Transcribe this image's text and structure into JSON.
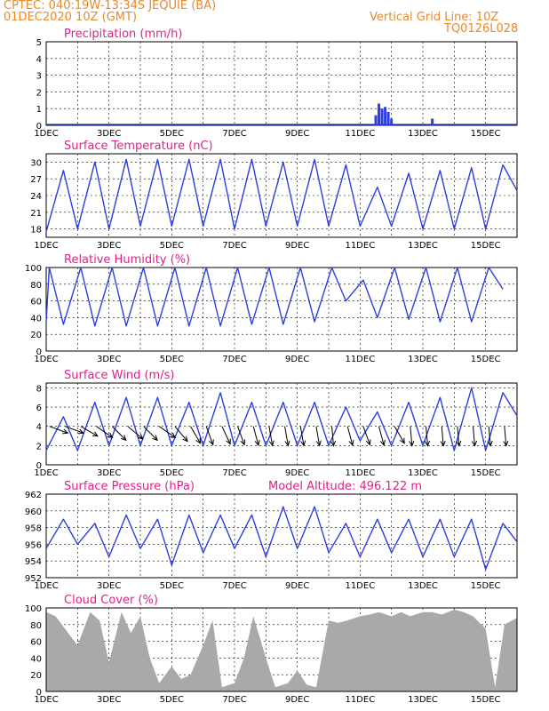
{
  "header": {
    "line1": "CPTEC:   040:19W-13:34S  JEQUIE (BA)",
    "line2": "01DEC2020 10Z (GMT)",
    "grid_note": "Vertical Grid Line: 10Z",
    "code": "TQ0126L028"
  },
  "x_labels": [
    "1DEC",
    "3DEC",
    "5DEC",
    "7DEC",
    "9DEC",
    "11DEC",
    "13DEC",
    "15DEC"
  ],
  "colors": {
    "line": "#2b3fe0",
    "title": "#e0218a",
    "header": "#e8892a",
    "cloud": "#a9a9a9",
    "wind_arrow": "#000000"
  },
  "chart_data": [
    {
      "id": "precip",
      "type": "bar",
      "title": "Precipitation (mm/h)",
      "ylim": [
        0,
        5
      ],
      "yticks": [
        0,
        1,
        2,
        3,
        4,
        5
      ],
      "x": [
        10.5,
        10.6,
        10.7,
        10.8,
        10.9,
        11.0,
        12.3
      ],
      "values": [
        0.6,
        1.3,
        1.0,
        1.1,
        0.8,
        0.4,
        0.4
      ]
    },
    {
      "id": "temp",
      "type": "line",
      "title": "Surface Temperature (nC)",
      "ylim": [
        16.5,
        31.5
      ],
      "yticks": [
        18,
        21,
        24,
        27,
        30
      ],
      "mins": [
        17.5,
        18.0,
        18.0,
        18.5,
        18.5,
        18.5,
        18.0,
        18.5,
        18.5,
        18.5,
        18.5,
        18.5,
        18.0,
        18.0,
        18.0
      ],
      "maxs": [
        28.5,
        30.0,
        30.5,
        30.5,
        30.5,
        30.5,
        30.5,
        30.0,
        30.5,
        29.5,
        25.5,
        28.0,
        28.5,
        29.0,
        29.5
      ]
    },
    {
      "id": "rh",
      "type": "line",
      "title": "Relative Humidity (%)",
      "ylim": [
        0,
        100
      ],
      "yticks": [
        0,
        20,
        40,
        60,
        80,
        100
      ],
      "mins": [
        35,
        32,
        30,
        30,
        30,
        30,
        30,
        32,
        32,
        35,
        60,
        40,
        38,
        35,
        35
      ],
      "maxs": [
        100,
        100,
        100,
        100,
        100,
        100,
        100,
        100,
        100,
        100,
        85,
        100,
        100,
        100,
        100
      ]
    },
    {
      "id": "wind",
      "type": "line",
      "title": "Surface Wind (m/s)",
      "ylim": [
        0,
        8.5
      ],
      "yticks": [
        0,
        2,
        4,
        6,
        8
      ],
      "mins": [
        1.5,
        1.5,
        2.0,
        2.0,
        2.0,
        2.0,
        2.0,
        2.0,
        2.0,
        2.0,
        2.5,
        2.0,
        2.0,
        1.5,
        1.5
      ],
      "maxs": [
        5.0,
        6.5,
        7.0,
        7.0,
        6.5,
        7.5,
        6.5,
        6.5,
        6.5,
        6.0,
        5.5,
        6.5,
        7.0,
        8.0,
        7.5
      ],
      "arrow_dirs": [
        200,
        200,
        210,
        215,
        225,
        220,
        225,
        215,
        230,
        240,
        250,
        245,
        250,
        255,
        260,
        260,
        260,
        260,
        265,
        255,
        250,
        255,
        240,
        265,
        265,
        265,
        265,
        265,
        265,
        265
      ]
    },
    {
      "id": "pres",
      "type": "line",
      "title": "Surface Pressure (hPa)",
      "extra_label": "Model Altitude: 496.122 m",
      "ylim": [
        952,
        962
      ],
      "yticks": [
        952,
        954,
        956,
        958,
        960,
        962
      ],
      "mins": [
        955.5,
        956.0,
        954.5,
        955.5,
        953.5,
        955.0,
        955.5,
        954.5,
        955.5,
        955.0,
        954.5,
        955.0,
        954.5,
        954.5,
        953.0
      ],
      "maxs": [
        959.0,
        958.5,
        959.5,
        959.0,
        959.5,
        959.5,
        959.5,
        960.5,
        960.5,
        958.5,
        959.0,
        959.0,
        959.0,
        959.0,
        958.5
      ]
    },
    {
      "id": "cloud",
      "type": "area",
      "title": "Cloud Cover (%)",
      "ylim": [
        0,
        100
      ],
      "yticks": [
        0,
        20,
        40,
        60,
        80,
        100
      ],
      "x": [
        0,
        0.3,
        0.6,
        1.0,
        1.4,
        1.7,
        2.0,
        2.4,
        2.7,
        3.0,
        3.3,
        3.6,
        4.0,
        4.3,
        4.6,
        5.0,
        5.3,
        5.6,
        6.0,
        6.3,
        6.6,
        7.0,
        7.3,
        7.7,
        8.0,
        8.3,
        8.6,
        9.0,
        9.3,
        9.6,
        10.0,
        10.3,
        10.6,
        11.0,
        11.3,
        11.6,
        12.0,
        12.3,
        12.6,
        13.0,
        13.3,
        13.6,
        14.0,
        14.3,
        14.6,
        15.0
      ],
      "values": [
        95,
        90,
        75,
        55,
        95,
        85,
        35,
        95,
        70,
        90,
        40,
        10,
        30,
        15,
        20,
        55,
        85,
        5,
        10,
        40,
        90,
        40,
        5,
        10,
        25,
        8,
        5,
        85,
        82,
        85,
        90,
        92,
        95,
        90,
        95,
        90,
        95,
        95,
        92,
        98,
        95,
        90,
        75,
        5,
        80,
        88
      ]
    }
  ]
}
